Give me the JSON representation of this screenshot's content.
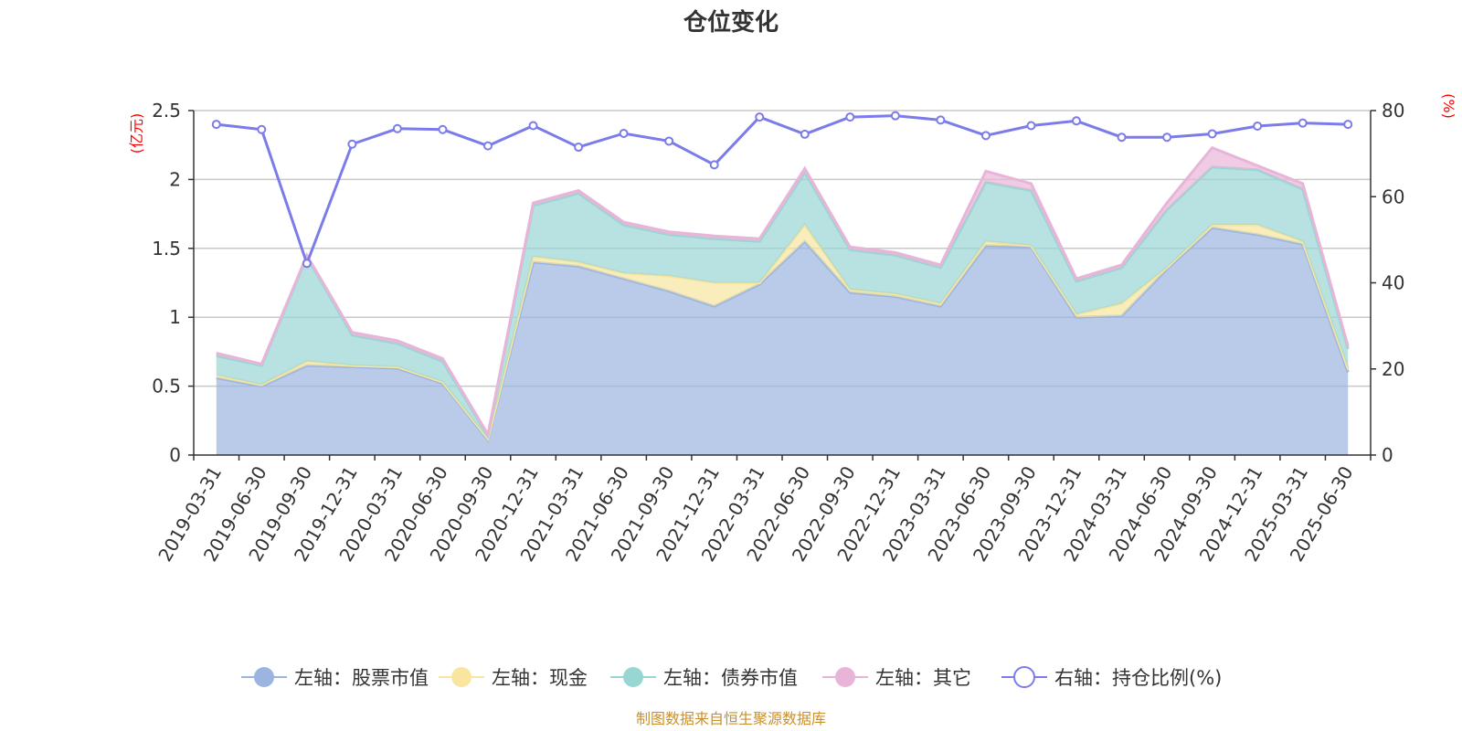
{
  "chart_data": {
    "type": "area",
    "title": "仓位变化",
    "x": [
      "2019-03-31",
      "2019-06-30",
      "2019-09-30",
      "2019-12-31",
      "2020-03-31",
      "2020-06-30",
      "2020-09-30",
      "2020-12-31",
      "2021-03-31",
      "2021-06-30",
      "2021-09-30",
      "2021-12-31",
      "2022-03-31",
      "2022-06-30",
      "2022-09-30",
      "2022-12-31",
      "2023-03-31",
      "2023-06-30",
      "2023-09-30",
      "2023-12-31",
      "2024-03-31",
      "2024-06-30",
      "2024-09-30",
      "2024-12-31",
      "2025-03-31",
      "2025-06-30"
    ],
    "left_axis": {
      "unit": "(亿元)",
      "ylim": [
        0,
        2.5
      ],
      "ticks": [
        "0",
        "0.5",
        "1",
        "1.5",
        "2",
        "2.5"
      ]
    },
    "right_axis": {
      "unit": "(%)",
      "ylim": [
        0,
        80
      ],
      "ticks": [
        "0",
        "20",
        "40",
        "60",
        "80"
      ]
    },
    "series": [
      {
        "name": "左轴：股票市值",
        "axis": "left",
        "stack": true,
        "color": "#9bb5e0",
        "values": [
          0.56,
          0.5,
          0.65,
          0.64,
          0.63,
          0.52,
          0.11,
          1.4,
          1.37,
          1.28,
          1.19,
          1.08,
          1.24,
          1.55,
          1.18,
          1.15,
          1.08,
          1.52,
          1.51,
          1.0,
          1.01,
          1.35,
          1.65,
          1.6,
          1.53,
          0.6
        ]
      },
      {
        "name": "左轴：现金",
        "axis": "left",
        "stack": true,
        "color": "#f7e5a0",
        "values": [
          0.02,
          0.01,
          0.03,
          0.01,
          0.01,
          0.01,
          0.01,
          0.04,
          0.03,
          0.04,
          0.11,
          0.17,
          0.01,
          0.12,
          0.02,
          0.02,
          0.02,
          0.03,
          0.01,
          0.02,
          0.09,
          0.01,
          0.02,
          0.07,
          0.02,
          0.03
        ]
      },
      {
        "name": "左轴：债券市值",
        "axis": "left",
        "stack": true,
        "color": "#98d6d4",
        "values": [
          0.14,
          0.14,
          0.76,
          0.22,
          0.17,
          0.15,
          0.02,
          0.37,
          0.5,
          0.35,
          0.3,
          0.32,
          0.3,
          0.38,
          0.29,
          0.28,
          0.26,
          0.43,
          0.4,
          0.24,
          0.26,
          0.42,
          0.42,
          0.4,
          0.38,
          0.14
        ]
      },
      {
        "name": "左轴：其它",
        "axis": "left",
        "stack": true,
        "color": "#e8b5d9",
        "values": [
          0.02,
          0.01,
          0.01,
          0.02,
          0.02,
          0.02,
          0.01,
          0.02,
          0.02,
          0.02,
          0.02,
          0.02,
          0.02,
          0.03,
          0.02,
          0.02,
          0.02,
          0.08,
          0.05,
          0.02,
          0.02,
          0.05,
          0.14,
          0.03,
          0.04,
          0.02
        ]
      },
      {
        "name": "右轴：持仓比例(%)",
        "axis": "right",
        "type": "line",
        "color": "#7b7bea",
        "values": [
          76.8,
          75.6,
          44.5,
          72.2,
          75.8,
          75.6,
          71.8,
          76.5,
          71.5,
          74.7,
          72.9,
          67.4,
          78.5,
          74.5,
          78.5,
          78.8,
          77.8,
          74.2,
          76.5,
          77.6,
          73.8,
          73.8,
          74.6,
          76.4,
          77.1,
          76.8
        ]
      }
    ],
    "legend_position": "bottom-center",
    "grid": true
  },
  "footer": "制图数据来自恒生聚源数据库"
}
